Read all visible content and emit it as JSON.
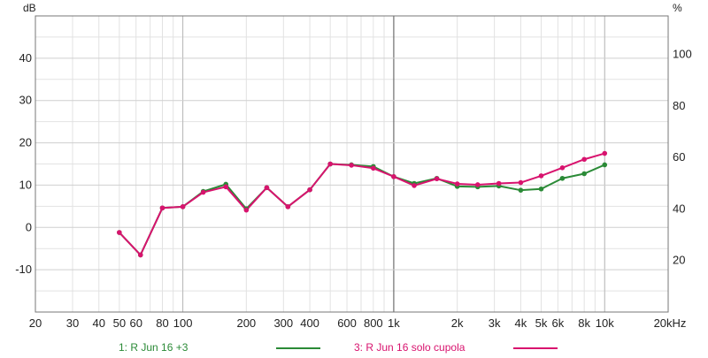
{
  "chart_data": {
    "type": "line",
    "xscale": "log",
    "xlim": [
      20,
      20000
    ],
    "ylim": [
      -20,
      50
    ],
    "y2lim": [
      0,
      115
    ],
    "ylabel": "dB",
    "y2label": "%",
    "grid": true,
    "legend_position": "bottom",
    "x_ticks": [
      {
        "value": 20,
        "label": "20"
      },
      {
        "value": 30,
        "label": "30"
      },
      {
        "value": 40,
        "label": "40"
      },
      {
        "value": 50,
        "label": "50"
      },
      {
        "value": 60,
        "label": "60"
      },
      {
        "value": 80,
        "label": "80"
      },
      {
        "value": 100,
        "label": "100"
      },
      {
        "value": 200,
        "label": "200"
      },
      {
        "value": 300,
        "label": "300"
      },
      {
        "value": 400,
        "label": "400"
      },
      {
        "value": 600,
        "label": "600"
      },
      {
        "value": 800,
        "label": "800"
      },
      {
        "value": 1000,
        "label": "1k"
      },
      {
        "value": 2000,
        "label": "2k"
      },
      {
        "value": 3000,
        "label": "3k"
      },
      {
        "value": 4000,
        "label": "4k"
      },
      {
        "value": 5000,
        "label": "5k"
      },
      {
        "value": 6000,
        "label": "6k"
      },
      {
        "value": 8000,
        "label": "8k"
      },
      {
        "value": 10000,
        "label": "10k"
      },
      {
        "value": 20000,
        "label": "20kHz"
      }
    ],
    "y_ticks": [
      {
        "value": 40,
        "label": "40"
      },
      {
        "value": 30,
        "label": "30"
      },
      {
        "value": 20,
        "label": "20"
      },
      {
        "value": 10,
        "label": "10"
      },
      {
        "value": 0,
        "label": "0"
      },
      {
        "value": -10,
        "label": "-10"
      }
    ],
    "y2_ticks": [
      {
        "value": 100,
        "label": "100"
      },
      {
        "value": 80,
        "label": "80"
      },
      {
        "value": 60,
        "label": "60"
      },
      {
        "value": 40,
        "label": "40"
      },
      {
        "value": 20,
        "label": "20"
      }
    ],
    "series": [
      {
        "name": "1: R Jun 16 +3",
        "color": "#2a8a36",
        "points": [
          [
            50,
            -1.2
          ],
          [
            63,
            -6.5
          ],
          [
            80,
            4.6
          ],
          [
            100,
            4.9
          ],
          [
            125,
            8.5
          ],
          [
            160,
            10.2
          ],
          [
            200,
            4.4
          ],
          [
            250,
            9.4
          ],
          [
            315,
            4.9
          ],
          [
            400,
            8.9
          ],
          [
            500,
            15.0
          ],
          [
            630,
            14.8
          ],
          [
            800,
            14.4
          ],
          [
            1000,
            12.0
          ],
          [
            1250,
            10.4
          ],
          [
            1600,
            11.6
          ],
          [
            2000,
            9.7
          ],
          [
            2500,
            9.6
          ],
          [
            3150,
            9.8
          ],
          [
            4000,
            8.8
          ],
          [
            5000,
            9.1
          ],
          [
            6300,
            11.6
          ],
          [
            8000,
            12.7
          ],
          [
            10000,
            14.8
          ]
        ]
      },
      {
        "name": "3: R Jun 16 solo cupola",
        "color": "#d8136e",
        "points": [
          [
            50,
            -1.2
          ],
          [
            63,
            -6.5
          ],
          [
            80,
            4.6
          ],
          [
            100,
            4.9
          ],
          [
            125,
            8.3
          ],
          [
            160,
            9.6
          ],
          [
            200,
            4.1
          ],
          [
            250,
            9.4
          ],
          [
            315,
            4.9
          ],
          [
            400,
            8.9
          ],
          [
            500,
            15.0
          ],
          [
            630,
            14.7
          ],
          [
            800,
            14.0
          ],
          [
            1000,
            12.0
          ],
          [
            1250,
            9.9
          ],
          [
            1600,
            11.5
          ],
          [
            2000,
            10.3
          ],
          [
            2500,
            10.1
          ],
          [
            3150,
            10.4
          ],
          [
            4000,
            10.6
          ],
          [
            5000,
            12.2
          ],
          [
            6300,
            14.1
          ],
          [
            8000,
            16.1
          ],
          [
            10000,
            17.5
          ]
        ]
      }
    ]
  }
}
